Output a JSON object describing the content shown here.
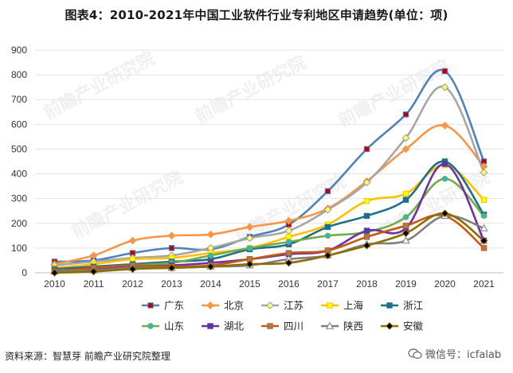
{
  "title": "图表4：2010-2021年中国工业软件行业专利地区申请趋势(单位：项)",
  "source_note": "资料来源：智慧芽 前瞻产业研究院整理",
  "wechat_label": "微信号：icfalab",
  "watermark": "前瞻产业研究院",
  "chart_data": {
    "type": "line",
    "title": "图表4：2010-2021年中国工业软件行业专利地区申请趋势(单位：项)",
    "xlabel": "",
    "ylabel": "",
    "x": [
      "2010",
      "2011",
      "2012",
      "2013",
      "2014",
      "2015",
      "2016",
      "2017",
      "2018",
      "2019",
      "2020",
      "2021"
    ],
    "ylim": [
      0,
      900
    ],
    "yticks": [
      0,
      100,
      200,
      300,
      400,
      500,
      600,
      700,
      800,
      900
    ],
    "grid": true,
    "legend_position": "bottom",
    "series": [
      {
        "name": "广东",
        "color": "#4f81bd",
        "marker": "square",
        "marker_color": "#c00000",
        "values": [
          45,
          50,
          80,
          100,
          95,
          145,
          195,
          330,
          500,
          640,
          815,
          450
        ]
      },
      {
        "name": "北京",
        "color": "#f79646",
        "marker": "diamond",
        "marker_color": "#f79646",
        "values": [
          35,
          70,
          130,
          150,
          155,
          185,
          210,
          260,
          370,
          500,
          595,
          430
        ]
      },
      {
        "name": "江苏",
        "color": "#a6a6a6",
        "marker": "diamond",
        "marker_color": "#ffff66",
        "values": [
          30,
          45,
          60,
          70,
          100,
          140,
          170,
          255,
          365,
          545,
          750,
          405
        ]
      },
      {
        "name": "上海",
        "color": "#ffc000",
        "marker": "square",
        "marker_color": "#ffff00",
        "values": [
          20,
          35,
          55,
          60,
          80,
          100,
          145,
          195,
          290,
          320,
          435,
          295
        ]
      },
      {
        "name": "浙江",
        "color": "#1f6f8b",
        "marker": "square",
        "marker_color": "#1f6f8b",
        "values": [
          15,
          25,
          35,
          45,
          55,
          95,
          115,
          185,
          230,
          295,
          450,
          235
        ]
      },
      {
        "name": "山东",
        "color": "#70ad47",
        "marker": "circle",
        "marker_color": "#29b6d6",
        "values": [
          10,
          15,
          30,
          40,
          70,
          100,
          125,
          150,
          165,
          225,
          380,
          230
        ]
      },
      {
        "name": "湖北",
        "color": "#7030a0",
        "marker": "square",
        "marker_color": "#4b3fa5",
        "values": [
          8,
          12,
          25,
          30,
          40,
          55,
          75,
          90,
          170,
          180,
          440,
          130
        ]
      },
      {
        "name": "四川",
        "color": "#c55a11",
        "marker": "square",
        "marker_color": "#a57c5a",
        "values": [
          5,
          20,
          30,
          25,
          30,
          55,
          80,
          90,
          145,
          190,
          230,
          100
        ]
      },
      {
        "name": "陕西",
        "color": "#7f7f7f",
        "marker": "triangle",
        "marker_color": "#ffffff",
        "values": [
          5,
          10,
          20,
          20,
          25,
          30,
          55,
          70,
          115,
          130,
          230,
          180
        ]
      },
      {
        "name": "安徽",
        "color": "#8b6f00",
        "marker": "diamond",
        "marker_color": "#000000",
        "values": [
          0,
          5,
          15,
          20,
          25,
          35,
          40,
          70,
          110,
          160,
          240,
          130
        ]
      }
    ]
  }
}
